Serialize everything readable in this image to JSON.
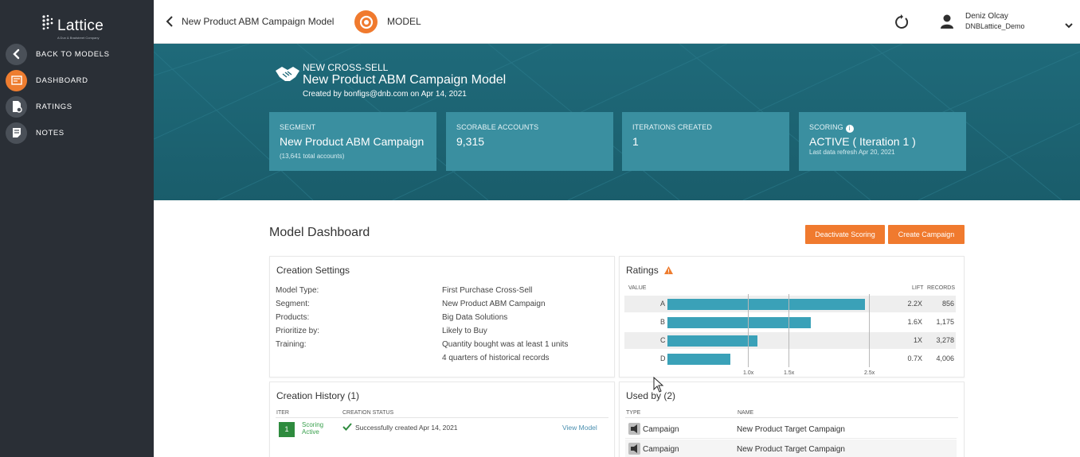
{
  "sidebar": {
    "logo_text": "Lattice",
    "logo_tagline": "A Dun & Bradstreet Company",
    "items": [
      {
        "label": "BACK TO MODELS",
        "icon": "chevron-left-icon"
      },
      {
        "label": "DASHBOARD",
        "icon": "dashboard-icon",
        "active": true
      },
      {
        "label": "RATINGS",
        "icon": "ratings-icon"
      },
      {
        "label": "NOTES",
        "icon": "notes-icon"
      }
    ]
  },
  "topbar": {
    "breadcrumb_title": "New Product ABM Campaign Model",
    "model_label": "MODEL",
    "user_name": "Deniz Olcay",
    "user_tenant": "DNBLattice_Demo"
  },
  "hero": {
    "kicker": "NEW CROSS-SELL",
    "title": "New Product ABM Campaign Model",
    "subtitle": "Created by bonfigs@dnb.com on Apr 14, 2021",
    "stats": [
      {
        "label": "SEGMENT",
        "value": "New Product ABM Campaign",
        "sub": "(13,641 total accounts)"
      },
      {
        "label": "SCORABLE ACCOUNTS",
        "value": "9,315",
        "sub": ""
      },
      {
        "label": "ITERATIONS CREATED",
        "value": "1",
        "sub": ""
      },
      {
        "label": "SCORING",
        "value": "ACTIVE ( Iteration 1 )",
        "sub": "Last data refresh Apr 20, 2021"
      }
    ]
  },
  "main": {
    "title": "Model Dashboard",
    "deactivate_label": "Deactivate Scoring",
    "create_campaign_label": "Create Campaign"
  },
  "creation_settings": {
    "title": "Creation Settings",
    "rows": [
      {
        "key": "Model Type:",
        "value": "First Purchase Cross-Sell"
      },
      {
        "key": "Segment:",
        "value": "New Product ABM Campaign"
      },
      {
        "key": "Products:",
        "value": "Big Data Solutions"
      },
      {
        "key": "Prioritize by:",
        "value": "Likely to Buy"
      },
      {
        "key": "Training:",
        "value": "Quantity bought was at least 1 units"
      },
      {
        "key": "",
        "value": "4 quarters of historical records"
      }
    ]
  },
  "ratings": {
    "title": "Ratings",
    "col_value": "VALUE",
    "col_lift": "LIFT",
    "col_records": "RECORDS",
    "axis_ticks": [
      "1.0x",
      "1.5x",
      "2.5x"
    ],
    "rows": [
      {
        "rating": "A",
        "lift": "2.2X",
        "lift_value": 2.2,
        "records": "856"
      },
      {
        "rating": "B",
        "lift": "1.6X",
        "lift_value": 1.6,
        "records": "1,175"
      },
      {
        "rating": "C",
        "lift": "1X",
        "lift_value": 1.0,
        "records": "3,278"
      },
      {
        "rating": "D",
        "lift": "0.7X",
        "lift_value": 0.7,
        "records": "4,006"
      }
    ],
    "bar_color": "#3aa1b8",
    "warning_color": "#ee7d30"
  },
  "creation_history": {
    "title": "Creation History (1)",
    "col_iter": "ITER",
    "col_status": "CREATION STATUS",
    "rows": [
      {
        "iter": "1",
        "state_line1": "Scoring",
        "state_line2": "Active",
        "status": "Successfully created Apr 14, 2021",
        "link": "View Model"
      }
    ]
  },
  "used_by": {
    "title": "Used by (2)",
    "col_type": "TYPE",
    "col_name": "NAME",
    "rows": [
      {
        "type": "Campaign",
        "name": "New Product Target Campaign"
      },
      {
        "type": "Campaign",
        "name": "New Product Target Campaign"
      }
    ]
  },
  "colors": {
    "accent": "#f07a2e",
    "sidebar": "#2a2f36",
    "hero": "#1f6a7a",
    "stat_card": "#3a8fa0",
    "success": "#2e8b3e"
  }
}
